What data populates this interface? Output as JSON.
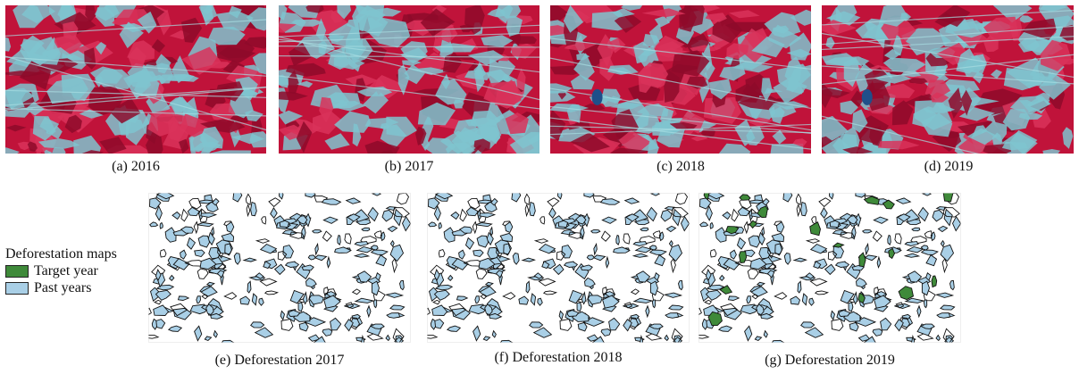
{
  "satellite_panels": [
    {
      "caption": "(a) 2016",
      "seed": 11
    },
    {
      "caption": "(b) 2017",
      "seed": 23
    },
    {
      "caption": "(c) 2018",
      "seed": 37
    },
    {
      "caption": "(d) 2019",
      "seed": 51
    }
  ],
  "map_panels": [
    {
      "caption": "(e) Deforestation 2017",
      "seed": 101,
      "target_year_patches": 0
    },
    {
      "caption": "(f) Deforestation 2018",
      "seed": 101,
      "target_year_patches": 0
    },
    {
      "caption": "(g) Deforestation 2019",
      "seed": 101,
      "target_year_patches": 18
    }
  ],
  "legend": {
    "title": "Deforestation maps",
    "items": [
      {
        "label": "Target year",
        "color": "#3f8a3a"
      },
      {
        "label": "Past years",
        "color": "#a9cfe6"
      }
    ]
  },
  "colors": {
    "forest": "#c0133a",
    "forest_dark": "#8e0a2a",
    "cleared": "#7fc4cf",
    "water": "#1f4f8a",
    "outline": "#111111"
  }
}
